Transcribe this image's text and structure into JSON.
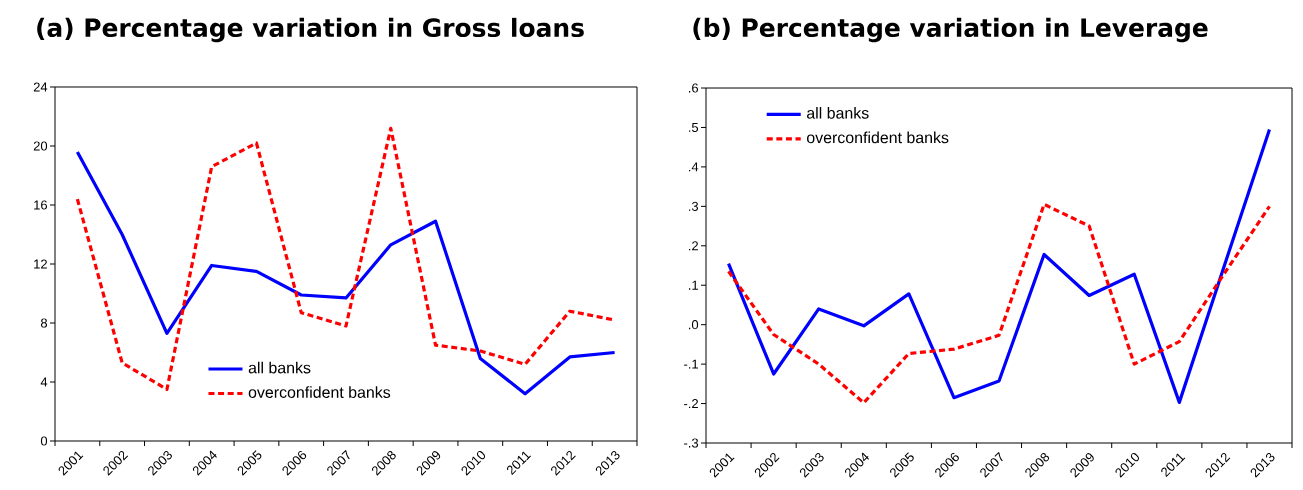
{
  "chart_data": [
    {
      "type": "line",
      "title": "(a) Percentage variation in Gross loans",
      "categories": [
        "2001",
        "2002",
        "2003",
        "2004",
        "2005",
        "2006",
        "2007",
        "2008",
        "2009",
        "2010",
        "2011",
        "2012",
        "2013"
      ],
      "series": [
        {
          "name": "all banks",
          "color": "#0000ff",
          "line_style": "solid",
          "values": [
            19.6,
            14.0,
            7.3,
            11.9,
            11.5,
            9.9,
            9.7,
            13.3,
            14.9,
            5.6,
            3.2,
            5.7,
            6.0
          ]
        },
        {
          "name": "overconfident banks",
          "color": "#ff0000",
          "line_style": "dashed",
          "values": [
            16.4,
            5.3,
            3.5,
            18.6,
            20.2,
            8.7,
            7.8,
            21.2,
            6.5,
            6.1,
            5.2,
            8.8,
            8.2
          ]
        }
      ],
      "ylim": [
        0,
        24
      ],
      "yticks": [
        0,
        4,
        8,
        12,
        16,
        20,
        24
      ],
      "legend": "bottom",
      "grid": false
    },
    {
      "type": "line",
      "title": "(b) Percentage variation in Leverage",
      "categories": [
        "2001",
        "2002",
        "2003",
        "2004",
        "2005",
        "2006",
        "2007",
        "2008",
        "2009",
        "2010",
        "2011",
        "2012",
        "2013"
      ],
      "series": [
        {
          "name": "all banks",
          "color": "#0000ff",
          "line_style": "solid",
          "values": [
            0.155,
            -0.125,
            0.04,
            -0.003,
            0.078,
            -0.185,
            -0.143,
            0.178,
            0.074,
            0.128,
            -0.197,
            0.15,
            0.495
          ]
        },
        {
          "name": "overconfident banks",
          "color": "#ff0000",
          "line_style": "dashed",
          "values": [
            0.135,
            -0.025,
            -0.1,
            -0.198,
            -0.073,
            -0.062,
            -0.027,
            0.305,
            0.25,
            -0.1,
            -0.043,
            0.13,
            0.3
          ]
        }
      ],
      "ylim": [
        -0.3,
        0.6
      ],
      "yticks": [
        {
          "value": -0.3,
          "label": "-.3"
        },
        {
          "value": -0.2,
          "label": "-.2"
        },
        {
          "value": -0.1,
          "label": "-.1"
        },
        {
          "value": 0.0,
          "label": ".0"
        },
        {
          "value": 0.1,
          "label": ".1"
        },
        {
          "value": 0.2,
          "label": ".2"
        },
        {
          "value": 0.3,
          "label": ".3"
        },
        {
          "value": 0.4,
          "label": ".4"
        },
        {
          "value": 0.5,
          "label": ".5"
        },
        {
          "value": 0.6,
          "label": ".6"
        }
      ],
      "legend": "top left",
      "grid": false
    }
  ]
}
